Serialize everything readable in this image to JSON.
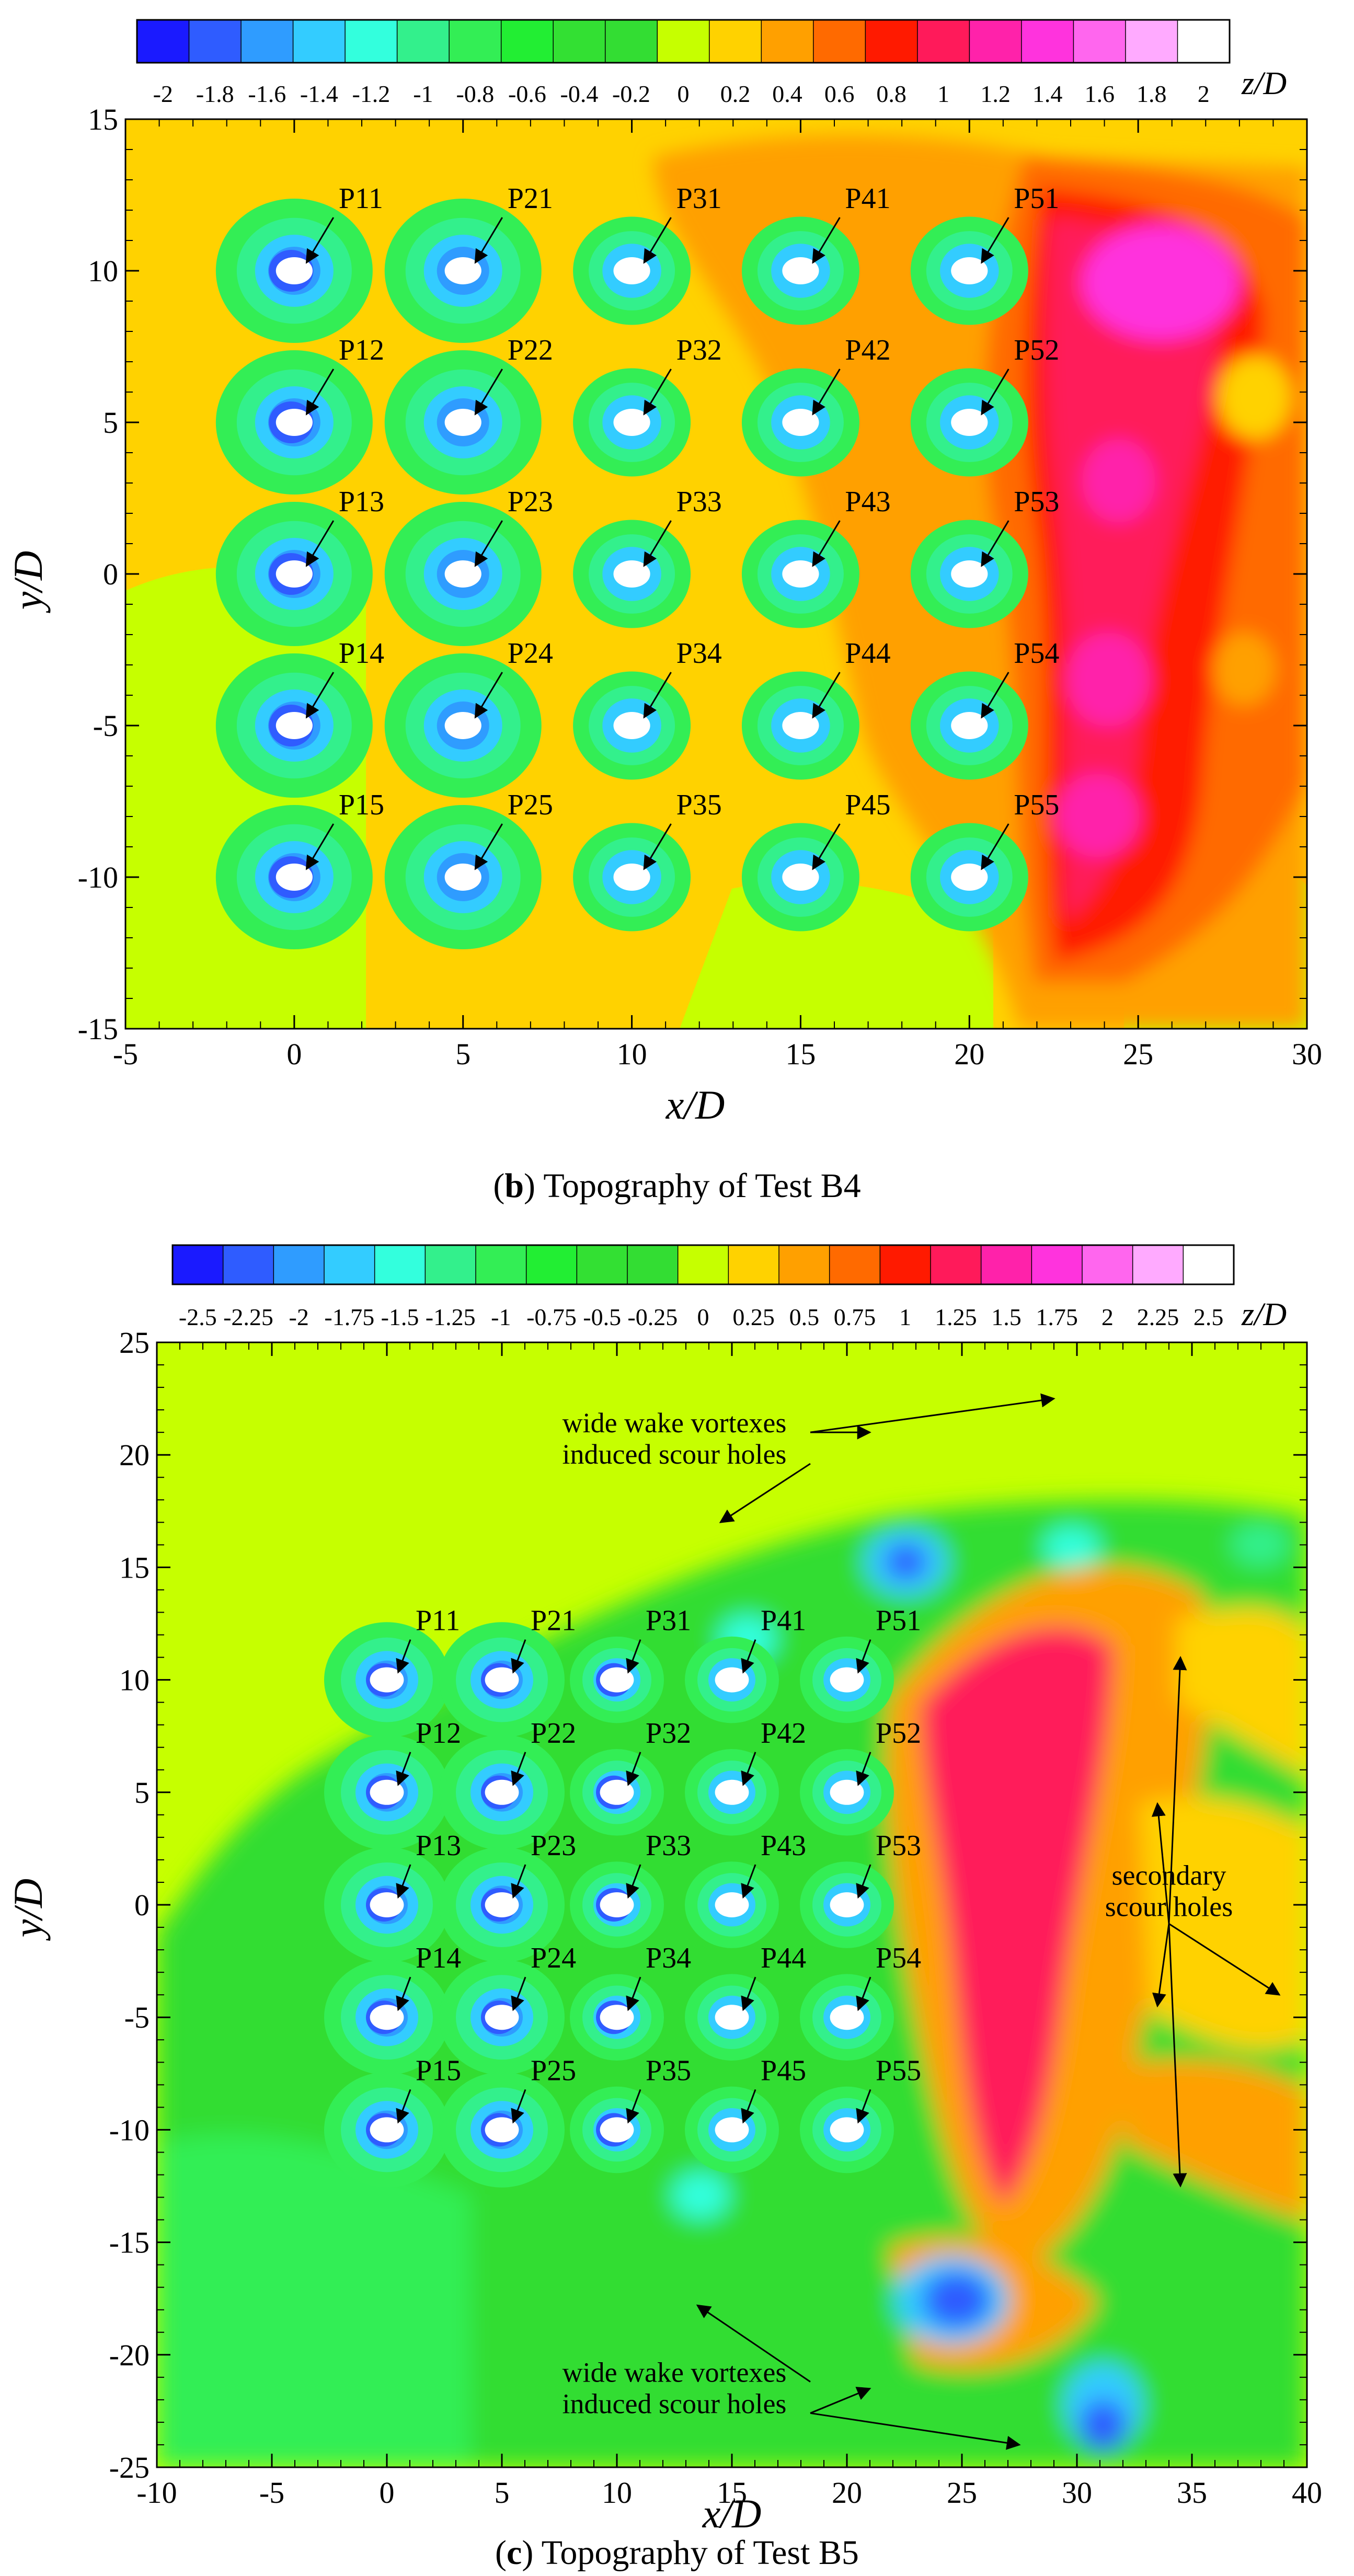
{
  "colors": {
    "scale_b4": [
      "#1a1aff",
      "#2f5cff",
      "#2f9cff",
      "#33ccff",
      "#33ffdd",
      "#33f08c",
      "#33ee55",
      "#22ee33",
      "#33e033",
      "#33dd33",
      "#c6ff00",
      "#ffd200",
      "#ffa000",
      "#ff6a00",
      "#ff1a00",
      "#ff1a5a",
      "#ff22aa",
      "#ff33dd",
      "#ff66ee",
      "#ffaaff",
      "#ffffff"
    ],
    "scale_b5": [
      "#1a1aff",
      "#2f5cff",
      "#2f9cff",
      "#33ccff",
      "#33ffdd",
      "#33f08c",
      "#33ee55",
      "#22ee33",
      "#33e033",
      "#33dd33",
      "#c6ff00",
      "#ffd200",
      "#ffa000",
      "#ff6a00",
      "#ff1a00",
      "#ff1a5a",
      "#ff22aa",
      "#ff33dd",
      "#ff66ee",
      "#ffaaff",
      "#ffffff"
    ]
  },
  "chart_data": [
    {
      "type": "heatmap",
      "subtitle_letter": "b",
      "subtitle_rest": " Topography of Test B4",
      "xlabel": "x/D",
      "ylabel": "y/D",
      "xlim": [
        -5,
        30
      ],
      "ylim": [
        -15,
        15
      ],
      "x_ticks": [
        -5,
        0,
        5,
        10,
        15,
        20,
        25,
        30
      ],
      "y_ticks": [
        -15,
        -10,
        -5,
        0,
        5,
        10,
        15
      ],
      "x_tick_labels": [
        "-5",
        "0",
        "5",
        "10",
        "15",
        "20",
        "25",
        "30"
      ],
      "y_tick_labels": [
        "-15",
        "-10",
        "-5",
        "0",
        "5",
        "10",
        "15"
      ],
      "colorbar": {
        "label": "z/D",
        "levels": [
          -2,
          -1.8,
          -1.6,
          -1.4,
          -1.2,
          -1,
          -0.8,
          -0.6,
          -0.4,
          -0.2,
          0,
          0.2,
          0.4,
          0.6,
          0.8,
          1,
          1.2,
          1.4,
          1.6,
          1.8,
          2
        ],
        "tick_labels": [
          "-2",
          "-1.8",
          "-1.6",
          "-1.4",
          "-1.2",
          "-1",
          "-0.8",
          "-0.6",
          "-0.4",
          "-0.2",
          "0",
          "0.2",
          "0.4",
          "0.6",
          "0.8",
          "1",
          "1.2",
          "1.4",
          "1.6",
          "1.8",
          "2"
        ]
      },
      "piles": [
        {
          "label": "P11",
          "x": 0,
          "y": 10
        },
        {
          "label": "P21",
          "x": 5,
          "y": 10
        },
        {
          "label": "P31",
          "x": 10,
          "y": 10
        },
        {
          "label": "P41",
          "x": 15,
          "y": 10
        },
        {
          "label": "P51",
          "x": 20,
          "y": 10
        },
        {
          "label": "P12",
          "x": 0,
          "y": 5
        },
        {
          "label": "P22",
          "x": 5,
          "y": 5
        },
        {
          "label": "P32",
          "x": 10,
          "y": 5
        },
        {
          "label": "P42",
          "x": 15,
          "y": 5
        },
        {
          "label": "P52",
          "x": 20,
          "y": 5
        },
        {
          "label": "P13",
          "x": 0,
          "y": 0
        },
        {
          "label": "P23",
          "x": 5,
          "y": 0
        },
        {
          "label": "P33",
          "x": 10,
          "y": 0
        },
        {
          "label": "P43",
          "x": 15,
          "y": 0
        },
        {
          "label": "P53",
          "x": 20,
          "y": 0
        },
        {
          "label": "P14",
          "x": 0,
          "y": -5
        },
        {
          "label": "P24",
          "x": 5,
          "y": -5
        },
        {
          "label": "P34",
          "x": 10,
          "y": -5
        },
        {
          "label": "P44",
          "x": 15,
          "y": -5
        },
        {
          "label": "P54",
          "x": 20,
          "y": -5
        },
        {
          "label": "P15",
          "x": 0,
          "y": -10
        },
        {
          "label": "P25",
          "x": 5,
          "y": -10
        },
        {
          "label": "P35",
          "x": 10,
          "y": -10
        },
        {
          "label": "P45",
          "x": 15,
          "y": -10
        },
        {
          "label": "P55",
          "x": 20,
          "y": -10
        }
      ],
      "annotations": []
    },
    {
      "type": "heatmap",
      "subtitle_letter": "c",
      "subtitle_rest": " Topography of Test B5",
      "xlabel": "x/D",
      "ylabel": "y/D",
      "xlim": [
        -10,
        40
      ],
      "ylim": [
        -25,
        25
      ],
      "x_ticks": [
        -10,
        -5,
        0,
        5,
        10,
        15,
        20,
        25,
        30,
        35,
        40
      ],
      "y_ticks": [
        -25,
        -20,
        -15,
        -10,
        -5,
        0,
        5,
        10,
        15,
        20,
        25
      ],
      "x_tick_labels": [
        "-10",
        "-5",
        "0",
        "5",
        "10",
        "15",
        "20",
        "25",
        "30",
        "35",
        "40"
      ],
      "y_tick_labels": [
        "-25",
        "-20",
        "-15",
        "-10",
        "-5",
        "0",
        "5",
        "10",
        "15",
        "20",
        "25"
      ],
      "colorbar": {
        "label": "z/D",
        "levels": [
          -2.5,
          -2.25,
          -2,
          -1.75,
          -1.5,
          -1.25,
          -1,
          -0.75,
          -0.5,
          -0.25,
          0,
          0.25,
          0.5,
          0.75,
          1,
          1.25,
          1.5,
          1.75,
          2,
          2.25,
          2.5
        ],
        "tick_labels": [
          "-2.5",
          "-2.25",
          "-2",
          "-1.75",
          "-1.5",
          "-1.25",
          "-1",
          "-0.75",
          "-0.5",
          "-0.25",
          "0",
          "0.25",
          "0.5",
          "0.75",
          "1",
          "1.25",
          "1.5",
          "1.75",
          "2",
          "2.25",
          "2.5"
        ]
      },
      "piles": [
        {
          "label": "P11",
          "x": 0,
          "y": 10
        },
        {
          "label": "P21",
          "x": 5,
          "y": 10
        },
        {
          "label": "P31",
          "x": 10,
          "y": 10
        },
        {
          "label": "P41",
          "x": 15,
          "y": 10
        },
        {
          "label": "P51",
          "x": 20,
          "y": 10
        },
        {
          "label": "P12",
          "x": 0,
          "y": 5
        },
        {
          "label": "P22",
          "x": 5,
          "y": 5
        },
        {
          "label": "P32",
          "x": 10,
          "y": 5
        },
        {
          "label": "P42",
          "x": 15,
          "y": 5
        },
        {
          "label": "P52",
          "x": 20,
          "y": 5
        },
        {
          "label": "P13",
          "x": 0,
          "y": 0
        },
        {
          "label": "P23",
          "x": 5,
          "y": 0
        },
        {
          "label": "P33",
          "x": 10,
          "y": 0
        },
        {
          "label": "P43",
          "x": 15,
          "y": 0
        },
        {
          "label": "P53",
          "x": 20,
          "y": 0
        },
        {
          "label": "P14",
          "x": 0,
          "y": -5
        },
        {
          "label": "P24",
          "x": 5,
          "y": -5
        },
        {
          "label": "P34",
          "x": 10,
          "y": -5
        },
        {
          "label": "P44",
          "x": 15,
          "y": -5
        },
        {
          "label": "P54",
          "x": 20,
          "y": -5
        },
        {
          "label": "P15",
          "x": 0,
          "y": -10
        },
        {
          "label": "P25",
          "x": 5,
          "y": -10
        },
        {
          "label": "P35",
          "x": 10,
          "y": -10
        },
        {
          "label": "P45",
          "x": 15,
          "y": -10
        },
        {
          "label": "P55",
          "x": 20,
          "y": -10
        }
      ],
      "annotations": [
        {
          "lines": [
            "wide wake vortexes",
            "induced scour holes"
          ],
          "x": 12.5,
          "y": 21.0,
          "arrows": [
            [
              21,
              21
            ],
            [
              14.5,
              17
            ],
            [
              29,
              22.5
            ]
          ]
        },
        {
          "lines": [
            "wide wake vortexes",
            "induced scour holes"
          ],
          "x": 12.5,
          "y": -21.2,
          "arrows": [
            [
              13.5,
              -17.8
            ],
            [
              21,
              -21.5
            ],
            [
              27.5,
              -24
            ]
          ]
        },
        {
          "lines": [
            "secondary",
            "scour holes"
          ],
          "x": 34,
          "y": 0.9,
          "arrows": [
            [
              34.5,
              11
            ],
            [
              33.5,
              4.5
            ],
            [
              33.5,
              -4.5
            ],
            [
              38.8,
              -4
            ],
            [
              34.5,
              -12.5
            ]
          ]
        }
      ]
    }
  ]
}
